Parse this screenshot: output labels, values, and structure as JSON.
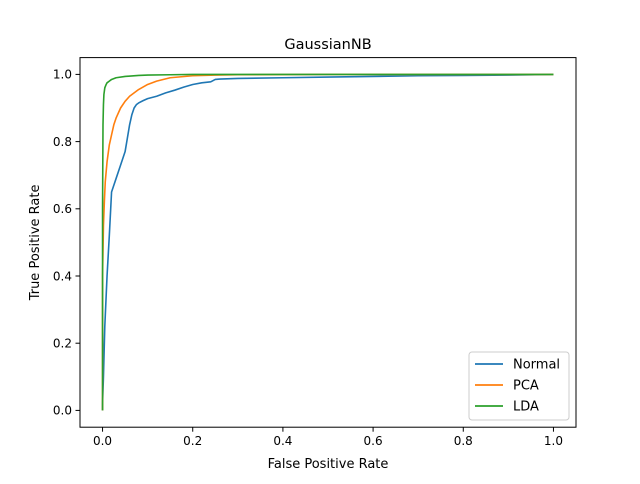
{
  "chart_data": {
    "type": "line",
    "title": "GaussianNB",
    "xlabel": "False Positive Rate",
    "ylabel": "True Positive Rate",
    "xlim": [
      -0.05,
      1.05
    ],
    "ylim": [
      -0.05,
      1.05
    ],
    "xticks": [
      0.0,
      0.2,
      0.4,
      0.6,
      0.8,
      1.0
    ],
    "xtick_labels": [
      "0.0",
      "0.2",
      "0.4",
      "0.6",
      "0.8",
      "1.0"
    ],
    "yticks": [
      0.0,
      0.2,
      0.4,
      0.6,
      0.8,
      1.0
    ],
    "ytick_labels": [
      "0.0",
      "0.2",
      "0.4",
      "0.6",
      "0.8",
      "1.0"
    ],
    "grid": false,
    "legend_position": "lower-right",
    "series": [
      {
        "name": "Normal",
        "color": "#1f77b4",
        "x": [
          0.0,
          0.0,
          0.002,
          0.005,
          0.01,
          0.015,
          0.02,
          0.025,
          0.03,
          0.04,
          0.05,
          0.055,
          0.06,
          0.065,
          0.07,
          0.075,
          0.08,
          0.09,
          0.1,
          0.12,
          0.14,
          0.16,
          0.18,
          0.2,
          0.22,
          0.24,
          0.25,
          0.26,
          0.3,
          0.4,
          0.5,
          0.6,
          0.7,
          0.8,
          0.9,
          1.0
        ],
        "y": [
          0.0,
          0.02,
          0.1,
          0.25,
          0.4,
          0.52,
          0.65,
          0.67,
          0.69,
          0.73,
          0.77,
          0.81,
          0.85,
          0.88,
          0.9,
          0.91,
          0.915,
          0.922,
          0.928,
          0.935,
          0.945,
          0.953,
          0.962,
          0.97,
          0.975,
          0.978,
          0.985,
          0.986,
          0.988,
          0.99,
          0.992,
          0.994,
          0.996,
          0.997,
          0.998,
          1.0
        ]
      },
      {
        "name": "PCA",
        "color": "#ff7f0e",
        "x": [
          0.0,
          0.0,
          0.002,
          0.004,
          0.006,
          0.01,
          0.015,
          0.02,
          0.025,
          0.03,
          0.04,
          0.05,
          0.06,
          0.07,
          0.08,
          0.1,
          0.12,
          0.15,
          0.2,
          0.25,
          0.3,
          0.5,
          0.8,
          1.0
        ],
        "y": [
          0.0,
          0.4,
          0.55,
          0.62,
          0.68,
          0.74,
          0.79,
          0.82,
          0.85,
          0.87,
          0.9,
          0.92,
          0.935,
          0.945,
          0.955,
          0.97,
          0.98,
          0.99,
          0.996,
          0.998,
          0.999,
          1.0,
          1.0,
          1.0
        ]
      },
      {
        "name": "LDA",
        "color": "#2ca02c",
        "x": [
          0.0,
          0.0,
          0.001,
          0.002,
          0.003,
          0.005,
          0.008,
          0.01,
          0.015,
          0.02,
          0.03,
          0.05,
          0.08,
          0.1,
          0.15,
          0.2,
          0.3,
          0.5,
          1.0
        ],
        "y": [
          0.0,
          0.6,
          0.85,
          0.91,
          0.94,
          0.96,
          0.97,
          0.975,
          0.98,
          0.985,
          0.99,
          0.994,
          0.997,
          0.998,
          0.999,
          1.0,
          1.0,
          1.0,
          1.0
        ]
      }
    ]
  }
}
